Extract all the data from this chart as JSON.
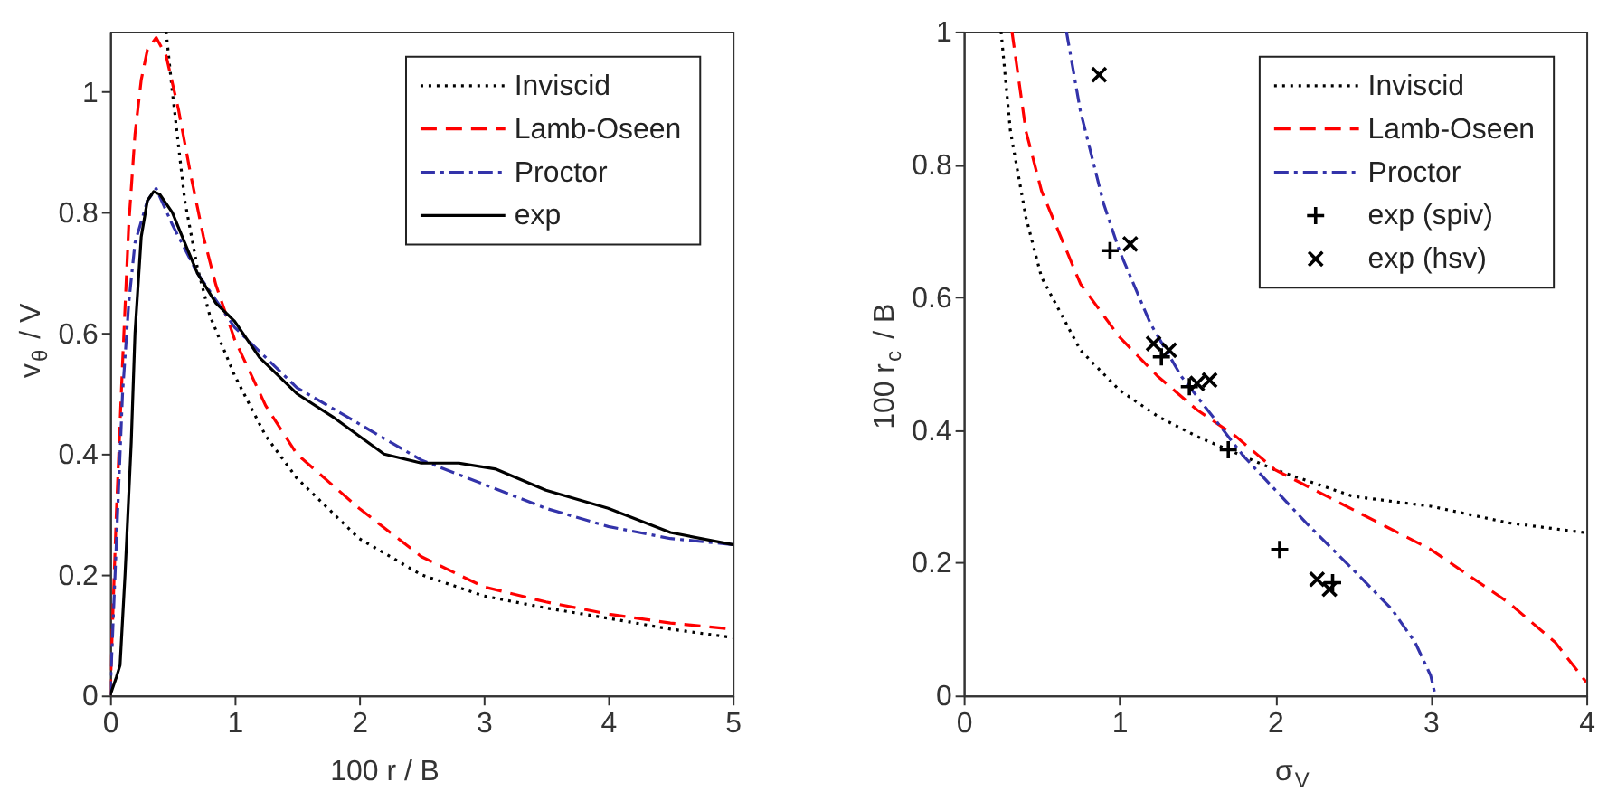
{
  "chart_data": [
    {
      "type": "line",
      "xlabel": "100 r / B",
      "ylabel": "v$_{θ}$ / V",
      "xlim": [
        0,
        5
      ],
      "ylim": [
        0,
        1.1
      ],
      "xticks": [
        0,
        1,
        2,
        3,
        4,
        5
      ],
      "yticks": [
        0,
        0.2,
        0.4,
        0.6,
        0.8,
        1
      ],
      "grid": false,
      "legend": "top right",
      "series": [
        {
          "name": "Inviscid",
          "color": "#000000",
          "line_style": "dotted",
          "x": [
            0.45,
            0.5,
            0.6,
            0.7,
            0.8,
            1.0,
            1.25,
            1.5,
            2,
            2.5,
            3,
            3.5,
            4,
            4.5,
            5
          ],
          "values": [
            1.1,
            1.0,
            0.82,
            0.71,
            0.63,
            0.53,
            0.43,
            0.36,
            0.26,
            0.2,
            0.165,
            0.145,
            0.128,
            0.11,
            0.096
          ]
        },
        {
          "name": "Lamb-Oseen",
          "color": "#ff0000",
          "line_style": "dashed",
          "x": [
            0,
            0.05,
            0.1,
            0.15,
            0.2,
            0.25,
            0.3,
            0.37,
            0.45,
            0.55,
            0.65,
            0.75,
            0.85,
            1,
            1.25,
            1.5,
            2,
            2.5,
            3,
            3.5,
            4,
            4.5,
            5
          ],
          "values": [
            0,
            0.3,
            0.55,
            0.78,
            0.93,
            1.02,
            1.07,
            1.09,
            1.06,
            0.97,
            0.86,
            0.76,
            0.68,
            0.59,
            0.48,
            0.4,
            0.31,
            0.23,
            0.18,
            0.155,
            0.135,
            0.12,
            0.11
          ]
        },
        {
          "name": "Proctor",
          "color": "#3333aa",
          "line_style": "dashdot",
          "x": [
            0,
            0.05,
            0.1,
            0.15,
            0.2,
            0.3,
            0.37,
            0.5,
            0.7,
            1,
            1.5,
            2,
            2.5,
            3,
            3.5,
            4,
            4.5,
            5
          ],
          "values": [
            0,
            0.25,
            0.5,
            0.65,
            0.75,
            0.82,
            0.84,
            0.78,
            0.7,
            0.61,
            0.51,
            0.45,
            0.39,
            0.35,
            0.31,
            0.28,
            0.26,
            0.25
          ]
        },
        {
          "name": "exp",
          "color": "#000000",
          "line_style": "solid",
          "x": [
            0,
            0.05,
            0.08,
            0.12,
            0.17,
            0.2,
            0.25,
            0.3,
            0.35,
            0.4,
            0.5,
            0.6,
            0.7,
            0.85,
            1,
            1.2,
            1.5,
            1.8,
            2,
            2.2,
            2.5,
            2.8,
            3.1,
            3.5,
            4,
            4.5,
            5
          ],
          "values": [
            0,
            0.03,
            0.05,
            0.2,
            0.42,
            0.6,
            0.76,
            0.82,
            0.835,
            0.83,
            0.8,
            0.75,
            0.7,
            0.65,
            0.62,
            0.56,
            0.5,
            0.46,
            0.43,
            0.4,
            0.385,
            0.385,
            0.375,
            0.34,
            0.31,
            0.27,
            0.25
          ]
        }
      ]
    },
    {
      "type": "line",
      "xlabel": "σ$_{V}$",
      "ylabel": "100 r$_{c}$ / B",
      "xlim": [
        0,
        4
      ],
      "ylim": [
        0,
        1
      ],
      "xticks": [
        0,
        1,
        2,
        3,
        4
      ],
      "yticks": [
        0,
        0.2,
        0.4,
        0.6,
        0.8,
        1
      ],
      "grid": false,
      "legend": "top right",
      "series": [
        {
          "name": "Inviscid",
          "color": "#000000",
          "line_style": "dotted",
          "x": [
            0.24,
            0.3,
            0.4,
            0.5,
            0.75,
            1,
            1.25,
            1.5,
            2,
            2.5,
            3,
            3.5,
            4
          ],
          "values": [
            1.0,
            0.85,
            0.72,
            0.63,
            0.52,
            0.46,
            0.42,
            0.39,
            0.34,
            0.3,
            0.285,
            0.26,
            0.245
          ]
        },
        {
          "name": "Lamb-Oseen",
          "color": "#ff0000",
          "line_style": "dashed",
          "x": [
            0.31,
            0.4,
            0.5,
            0.75,
            1,
            1.25,
            1.5,
            1.75,
            2,
            2.5,
            3,
            3.5,
            3.8,
            4
          ],
          "values": [
            1.0,
            0.85,
            0.76,
            0.62,
            0.54,
            0.48,
            0.43,
            0.39,
            0.34,
            0.28,
            0.22,
            0.14,
            0.08,
            0.02
          ]
        },
        {
          "name": "Proctor",
          "color": "#3333aa",
          "line_style": "dashdot",
          "x": [
            0.66,
            0.75,
            0.9,
            1,
            1.2,
            1.4,
            1.6,
            1.8,
            2,
            2.2,
            2.5,
            2.75,
            2.9,
            3.0,
            3.03
          ],
          "values": [
            1.0,
            0.88,
            0.74,
            0.67,
            0.56,
            0.48,
            0.42,
            0.36,
            0.31,
            0.26,
            0.19,
            0.13,
            0.08,
            0.03,
            0
          ]
        },
        {
          "name": "exp (spiv)",
          "color": "#000000",
          "type": "scatter",
          "marker": "plus",
          "x": [
            0.94,
            1.27,
            1.45,
            1.7,
            2.03,
            2.37
          ],
          "values": [
            0.67,
            0.51,
            0.465,
            0.37,
            0.22,
            0.17
          ]
        },
        {
          "name": "exp (hsv)",
          "color": "#000000",
          "type": "scatter",
          "marker": "cross",
          "x": [
            0.87,
            1.07,
            1.22,
            1.32,
            1.5,
            1.58,
            2.27,
            2.35
          ],
          "values": [
            0.935,
            0.68,
            0.53,
            0.52,
            0.47,
            0.475,
            0.175,
            0.16
          ]
        }
      ]
    }
  ]
}
